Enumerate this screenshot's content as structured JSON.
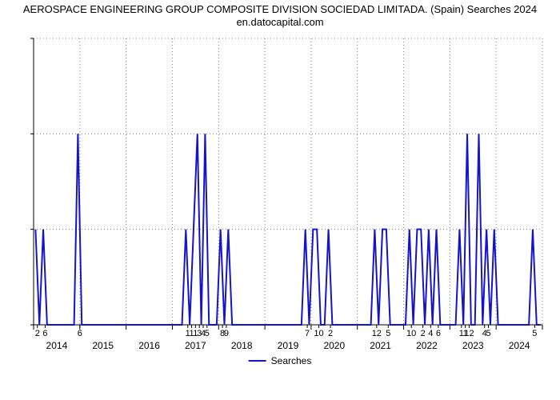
{
  "chart": {
    "type": "line",
    "title_line1": "AEROSPACE ENGINEERING GROUP COMPOSITE DIVISION SOCIEDAD LIMITADA. (Spain) Searches 2024",
    "title_line2": "en.datocapital.com",
    "title_fontsize": 13,
    "background_color": "#ffffff",
    "line_color": "#1515c8",
    "line_width": 2,
    "axis_color": "#000000",
    "grid_color": "#808080",
    "tick_fontsize": 12,
    "ylim": [
      0,
      3
    ],
    "yticks": [
      0,
      1,
      2,
      3
    ],
    "x_month_start": 0,
    "x_month_end": 132,
    "year_labels": [
      {
        "label": "2014",
        "month": 6
      },
      {
        "label": "2015",
        "month": 18
      },
      {
        "label": "2016",
        "month": 30
      },
      {
        "label": "2017",
        "month": 42
      },
      {
        "label": "2018",
        "month": 54
      },
      {
        "label": "2019",
        "month": 66
      },
      {
        "label": "2020",
        "month": 78
      },
      {
        "label": "2021",
        "month": 90
      },
      {
        "label": "2022",
        "month": 102
      },
      {
        "label": "2023",
        "month": 114
      },
      {
        "label": "2024",
        "month": 126
      }
    ],
    "minor_year_ticks": [
      0,
      12,
      24,
      36,
      48,
      60,
      72,
      84,
      96,
      108,
      120,
      132
    ],
    "value_ticks": [
      {
        "month": 1,
        "label": "2"
      },
      {
        "month": 3,
        "label": "6"
      },
      {
        "month": 12,
        "label": "6"
      },
      {
        "month": 40,
        "label": "1"
      },
      {
        "month": 41,
        "label": "1"
      },
      {
        "month": 42,
        "label": "1"
      },
      {
        "month": 43,
        "label": "3"
      },
      {
        "month": 44,
        "label": "4"
      },
      {
        "month": 45,
        "label": "5"
      },
      {
        "month": 49,
        "label": "8"
      },
      {
        "month": 50,
        "label": "9"
      },
      {
        "month": 71,
        "label": "7"
      },
      {
        "month": 74,
        "label": "10"
      },
      {
        "month": 77,
        "label": "2"
      },
      {
        "month": 89,
        "label": "12"
      },
      {
        "month": 92,
        "label": "5"
      },
      {
        "month": 98,
        "label": "10"
      },
      {
        "month": 101,
        "label": "2"
      },
      {
        "month": 103,
        "label": "4"
      },
      {
        "month": 105,
        "label": "6"
      },
      {
        "month": 111,
        "label": "1"
      },
      {
        "month": 112,
        "label": "1"
      },
      {
        "month": 113,
        "label": "12"
      },
      {
        "month": 117,
        "label": "4"
      },
      {
        "month": 118,
        "label": "5"
      },
      {
        "month": 130,
        "label": "5"
      }
    ],
    "values": [
      1,
      0,
      1,
      0,
      0,
      0,
      0,
      0,
      0,
      0,
      0,
      2,
      0,
      0,
      0,
      0,
      0,
      0,
      0,
      0,
      0,
      0,
      0,
      0,
      0,
      0,
      0,
      0,
      0,
      0,
      0,
      0,
      0,
      0,
      0,
      0,
      0,
      0,
      0,
      1,
      0,
      1,
      2,
      0,
      2,
      0,
      0,
      0,
      1,
      0,
      1,
      0,
      0,
      0,
      0,
      0,
      0,
      0,
      0,
      0,
      0,
      0,
      0,
      0,
      0,
      0,
      0,
      0,
      0,
      0,
      1,
      0,
      1,
      1,
      0,
      0,
      1,
      0,
      0,
      0,
      0,
      0,
      0,
      0,
      0,
      0,
      0,
      0,
      1,
      0,
      1,
      1,
      0,
      0,
      0,
      0,
      0,
      1,
      0,
      1,
      1,
      0,
      1,
      0,
      1,
      0,
      0,
      0,
      0,
      0,
      1,
      0,
      2,
      0,
      0,
      2,
      0,
      1,
      0,
      1,
      0,
      0,
      0,
      0,
      0,
      0,
      0,
      0,
      0,
      1,
      0,
      0
    ],
    "legend": {
      "label": "Searches",
      "color": "#1515c8"
    }
  }
}
